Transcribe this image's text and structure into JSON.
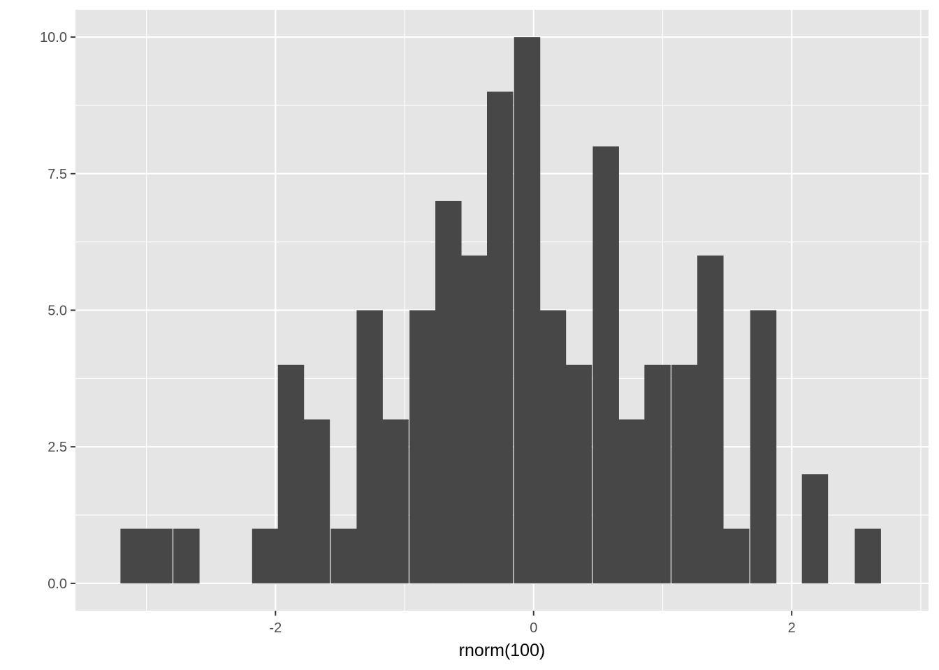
{
  "chart_data": {
    "type": "bar",
    "title": "",
    "xlabel": "rnorm(100)",
    "ylabel": "",
    "xlim": [
      -3.55,
      3.06
    ],
    "ylim": [
      -0.5,
      10.5
    ],
    "grid": true,
    "bin_width": 0.2028,
    "bins": [
      {
        "x": -3.1,
        "count": 1
      },
      {
        "x": -2.9,
        "count": 1
      },
      {
        "x": -2.69,
        "count": 1
      },
      {
        "x": -2.49,
        "count": 0
      },
      {
        "x": -2.29,
        "count": 0
      },
      {
        "x": -2.08,
        "count": 1
      },
      {
        "x": -1.88,
        "count": 4
      },
      {
        "x": -1.68,
        "count": 3
      },
      {
        "x": -1.47,
        "count": 1
      },
      {
        "x": -1.27,
        "count": 5
      },
      {
        "x": -1.07,
        "count": 3
      },
      {
        "x": -0.86,
        "count": 5
      },
      {
        "x": -0.66,
        "count": 7
      },
      {
        "x": -0.46,
        "count": 6
      },
      {
        "x": -0.26,
        "count": 9
      },
      {
        "x": -0.05,
        "count": 10
      },
      {
        "x": 0.15,
        "count": 5
      },
      {
        "x": 0.35,
        "count": 4
      },
      {
        "x": 0.56,
        "count": 8
      },
      {
        "x": 0.76,
        "count": 3
      },
      {
        "x": 0.96,
        "count": 4
      },
      {
        "x": 1.17,
        "count": 4
      },
      {
        "x": 1.37,
        "count": 6
      },
      {
        "x": 1.57,
        "count": 1
      },
      {
        "x": 1.78,
        "count": 5
      },
      {
        "x": 1.98,
        "count": 0
      },
      {
        "x": 2.18,
        "count": 2
      },
      {
        "x": 2.39,
        "count": 0
      },
      {
        "x": 2.59,
        "count": 1
      }
    ],
    "x_ticks": [
      -2,
      0,
      2
    ],
    "x_tick_labels": [
      "-2",
      "0",
      "2"
    ],
    "y_ticks": [
      0,
      2.5,
      5,
      7.5,
      10
    ],
    "y_tick_labels": [
      "0.0",
      "2.5",
      "5.0",
      "7.5",
      "10.0"
    ],
    "colors": {
      "panel_background": "#e5e5e5",
      "grid": "#ffffff",
      "bar_fill": "#474747",
      "tick_text": "#4d4d4d",
      "tick_mark": "#333333"
    }
  }
}
